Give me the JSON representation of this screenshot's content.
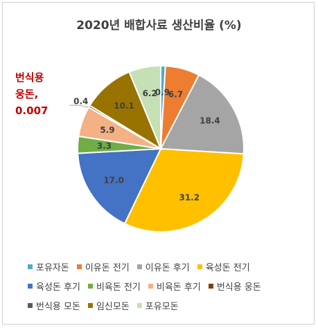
{
  "chart_data": {
    "type": "pie",
    "title": "2020년 배합사료 생산비율 (%)",
    "categories": [
      "포유자돈",
      "이유돈 전기",
      "이유돈 후기",
      "육성돈 전기",
      "육성돈 후기",
      "비육돈 전기",
      "비육돈 후기",
      "번식용 웅돈",
      "번식용 모돈",
      "임신모돈",
      "포유모돈"
    ],
    "values": [
      0.9,
      6.7,
      18.4,
      31.2,
      17.0,
      3.3,
      5.9,
      0.007,
      0.4,
      10.1,
      6.2
    ],
    "data_labels": [
      "0.9",
      "6.7",
      "18.4",
      "31.2",
      "17.0",
      "3.3",
      "5.9",
      "",
      "0.4",
      "10.1",
      "6.2"
    ],
    "colors": [
      "#4BACC6",
      "#ED7D31",
      "#A5A5A5",
      "#FFC000",
      "#4472C4",
      "#70AD47",
      "#F4B183",
      "#843C0C",
      "#595959",
      "#997300",
      "#C5E0B4"
    ],
    "legend_position": "bottom",
    "callout": {
      "category_index": 7,
      "line1": "번식용",
      "line2": "웅돈,",
      "line3": "0.007",
      "color": "#C00000"
    }
  }
}
